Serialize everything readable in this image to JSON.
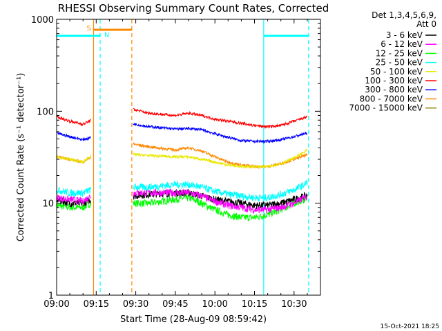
{
  "chart_data": {
    "type": "line",
    "title": "RHESSI Observing Summary Count Rates, Corrected",
    "xlabel": "Start Time (28-Aug-09 08:59:42)",
    "ylabel": "Corrected Count Rate (s⁻¹ detector⁻¹)",
    "x_unit": "minutes after 09:00",
    "xlim": [
      0,
      100
    ],
    "ylim": [
      1,
      1000
    ],
    "y_scale": "log",
    "x_ticks": [
      {
        "value": 0,
        "label": "09:00"
      },
      {
        "value": 15,
        "label": "09:15"
      },
      {
        "value": 30,
        "label": "09:30"
      },
      {
        "value": 45,
        "label": "09:45"
      },
      {
        "value": 60,
        "label": "10:00"
      },
      {
        "value": 75,
        "label": "10:15"
      },
      {
        "value": 90,
        "label": "10:30"
      }
    ],
    "y_ticks": [
      {
        "value": 1,
        "label": "1"
      },
      {
        "value": 10,
        "label": "10"
      },
      {
        "value": 100,
        "label": "100"
      },
      {
        "value": 1000,
        "label": "1000"
      }
    ],
    "legend_header": [
      "Det 1,3,4,5,6,9,",
      "Att 0"
    ],
    "legend_position": "right",
    "series": [
      {
        "name": "3 - 6 keV",
        "color": "#000000",
        "x": [
          0,
          5,
          10,
          13,
          29,
          35,
          45,
          50,
          55,
          60,
          65,
          70,
          75,
          80,
          85,
          90,
          94,
          95
        ],
        "y": [
          11,
          10,
          10,
          11,
          12,
          12.5,
          13,
          13,
          12,
          11,
          10.5,
          10,
          9.5,
          9.5,
          10,
          11,
          12,
          12
        ]
      },
      {
        "name": "6 - 12 keV",
        "color": "#ff00ff",
        "x": [
          0,
          5,
          10,
          13,
          29,
          35,
          45,
          50,
          55,
          60,
          65,
          70,
          75,
          80,
          85,
          90,
          94,
          95
        ],
        "y": [
          11.5,
          11,
          10.5,
          12,
          13,
          13,
          13,
          13,
          12,
          10.5,
          9.5,
          9,
          8.5,
          8.5,
          9,
          10,
          11.5,
          12
        ]
      },
      {
        "name": "12 - 25 keV",
        "color": "#00ff00",
        "x": [
          0,
          5,
          10,
          13,
          29,
          35,
          45,
          50,
          55,
          60,
          65,
          70,
          75,
          80,
          85,
          90,
          94,
          95
        ],
        "y": [
          9.5,
          9,
          9,
          10,
          10,
          10,
          11,
          11.5,
          10,
          8.5,
          7.5,
          7,
          7,
          7.5,
          8.5,
          10,
          11,
          11.5
        ]
      },
      {
        "name": "25 - 50 keV",
        "color": "#00ffff",
        "x": [
          0,
          5,
          10,
          13,
          29,
          35,
          45,
          50,
          55,
          60,
          65,
          70,
          75,
          80,
          85,
          90,
          94,
          95
        ],
        "y": [
          14,
          13,
          13,
          14,
          15,
          15,
          16,
          16,
          15,
          13.5,
          12.5,
          12,
          11.5,
          11.5,
          12.5,
          14,
          16,
          17
        ]
      },
      {
        "name": "50 - 100 keV",
        "color": "#e8e800",
        "x": [
          0,
          5,
          10,
          13,
          29,
          35,
          45,
          50,
          55,
          60,
          65,
          70,
          75,
          80,
          85,
          90,
          94,
          95
        ],
        "y": [
          32,
          30,
          28,
          33,
          34,
          33,
          32,
          32,
          30,
          28,
          26,
          25,
          25,
          25,
          27,
          31,
          36,
          38
        ]
      },
      {
        "name": "100 - 300 keV",
        "color": "#ff0000",
        "x": [
          0,
          5,
          10,
          13,
          29,
          35,
          45,
          50,
          55,
          60,
          65,
          70,
          75,
          80,
          85,
          90,
          94,
          95
        ],
        "y": [
          87,
          78,
          72,
          80,
          105,
          95,
          90,
          95,
          90,
          82,
          78,
          74,
          70,
          68,
          70,
          78,
          85,
          88
        ]
      },
      {
        "name": "300 - 800 keV",
        "color": "#0000ff",
        "x": [
          0,
          5,
          10,
          13,
          29,
          35,
          45,
          50,
          55,
          60,
          65,
          70,
          75,
          80,
          85,
          90,
          94,
          95
        ],
        "y": [
          58,
          53,
          49,
          52,
          73,
          68,
          64,
          65,
          63,
          57,
          52,
          48,
          47,
          47,
          49,
          53,
          57,
          57
        ]
      },
      {
        "name": "800 - 7000 keV",
        "color": "#ff8800",
        "x": [
          0,
          5,
          10,
          13,
          29,
          35,
          45,
          50,
          55,
          60,
          65,
          70,
          75,
          80,
          85,
          90,
          94,
          95
        ],
        "y": [
          32,
          30,
          28,
          32,
          44,
          41,
          38,
          40,
          37,
          32,
          28,
          26,
          25,
          25,
          27,
          30,
          33,
          33
        ]
      },
      {
        "name": "7000 - 15000 keV",
        "color": "#808000",
        "x": [],
        "y": []
      }
    ],
    "attenuator_bar": {
      "label": "S",
      "color": "#ff8800",
      "x_start": 14,
      "x_end": 28.5,
      "value": 770
    },
    "night_bars": [
      {
        "label": "N",
        "color": "#00ffff",
        "x_start": 0,
        "x_end": 16.5,
        "value": 660
      },
      {
        "label": "",
        "color": "#00ffff",
        "x_start": 78.5,
        "x_end": 95.5,
        "value": 660
      }
    ],
    "vertical_markers": [
      {
        "x": 14,
        "color": "#ff8800",
        "style": "solid"
      },
      {
        "x": 16.5,
        "color": "#00ffff",
        "style": "dashed"
      },
      {
        "x": 28.5,
        "color": "#ff8800",
        "style": "dashed"
      },
      {
        "x": 78.5,
        "color": "#00ffff",
        "style": "solid"
      },
      {
        "x": 95.5,
        "color": "#00ffff",
        "style": "dashed"
      }
    ],
    "footer": "15-Oct-2021 18:25"
  }
}
